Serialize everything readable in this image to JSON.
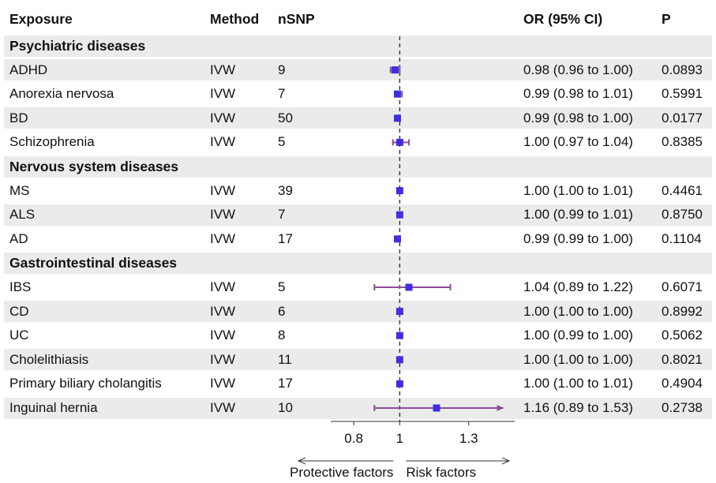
{
  "headers": {
    "exposure": "Exposure",
    "method": "Method",
    "nsnp": "nSNP",
    "or_ci": "OR (95% CI)",
    "p": "P"
  },
  "groups": [
    {
      "name": "Psychiatric diseases",
      "rows": [
        {
          "exposure": "ADHD",
          "method": "IVW",
          "nsnp": "9",
          "or_ci": "0.98 (0.96 to 1.00)",
          "p": "0.0893"
        },
        {
          "exposure": "Anorexia nervosa",
          "method": "IVW",
          "nsnp": "7",
          "or_ci": "0.99 (0.98 to 1.01)",
          "p": "0.5991"
        },
        {
          "exposure": "BD",
          "method": "IVW",
          "nsnp": "50",
          "or_ci": "0.99 (0.98 to 1.00)",
          "p": "0.0177"
        },
        {
          "exposure": "Schizophrenia",
          "method": "IVW",
          "nsnp": "5",
          "or_ci": "1.00 (0.97 to 1.04)",
          "p": "0.8385"
        }
      ]
    },
    {
      "name": "Nervous system diseases",
      "rows": [
        {
          "exposure": "MS",
          "method": "IVW",
          "nsnp": "39",
          "or_ci": "1.00 (1.00 to 1.01)",
          "p": "0.4461"
        },
        {
          "exposure": "ALS",
          "method": "IVW",
          "nsnp": "7",
          "or_ci": "1.00 (0.99 to 1.01)",
          "p": "0.8750"
        },
        {
          "exposure": "AD",
          "method": "IVW",
          "nsnp": "17",
          "or_ci": "0.99 (0.99 to 1.00)",
          "p": "0.1104"
        }
      ]
    },
    {
      "name": "Gastrointestinal diseases",
      "rows": [
        {
          "exposure": "IBS",
          "method": "IVW",
          "nsnp": "5",
          "or_ci": "1.04 (0.89 to 1.22)",
          "p": "0.6071"
        },
        {
          "exposure": "CD",
          "method": "IVW",
          "nsnp": "6",
          "or_ci": "1.00 (1.00 to 1.00)",
          "p": "0.8992"
        },
        {
          "exposure": "UC",
          "method": "IVW",
          "nsnp": "8",
          "or_ci": "1.00 (0.99 to 1.00)",
          "p": "0.5062"
        },
        {
          "exposure": "Cholelithiasis",
          "method": "IVW",
          "nsnp": "11",
          "or_ci": "1.00 (1.00 to 1.00)",
          "p": "0.8021"
        },
        {
          "exposure": "Primary biliary cholangitis",
          "method": "IVW",
          "nsnp": "17",
          "or_ci": "1.00 (1.00 to 1.01)",
          "p": "0.4904"
        },
        {
          "exposure": "Inguinal hernia",
          "method": "IVW",
          "nsnp": "10",
          "or_ci": "1.16 (0.89 to 1.53)",
          "p": "0.2738"
        }
      ]
    }
  ],
  "chart_data": {
    "type": "forest",
    "reference_line": 1,
    "xlim": [
      0.7,
      1.5
    ],
    "xticks": [
      0.8,
      1,
      1.3
    ],
    "xtick_labels": [
      "0.8",
      "1",
      "1.3"
    ],
    "direction_labels": {
      "left": "Protective factors",
      "right": "Risk factors"
    },
    "colors": {
      "point": "#3f2fe0",
      "ci_line": "#8a4f96",
      "reference": "#333333"
    },
    "series": [
      {
        "exposure": "ADHD",
        "or": 0.98,
        "lower": 0.96,
        "upper": 1.0
      },
      {
        "exposure": "Anorexia nervosa",
        "or": 0.99,
        "lower": 0.98,
        "upper": 1.01
      },
      {
        "exposure": "BD",
        "or": 0.99,
        "lower": 0.98,
        "upper": 1.0
      },
      {
        "exposure": "Schizophrenia",
        "or": 1.0,
        "lower": 0.97,
        "upper": 1.04
      },
      {
        "exposure": "MS",
        "or": 1.0,
        "lower": 1.0,
        "upper": 1.01
      },
      {
        "exposure": "ALS",
        "or": 1.0,
        "lower": 0.99,
        "upper": 1.01
      },
      {
        "exposure": "AD",
        "or": 0.99,
        "lower": 0.99,
        "upper": 1.0
      },
      {
        "exposure": "IBS",
        "or": 1.04,
        "lower": 0.89,
        "upper": 1.22
      },
      {
        "exposure": "CD",
        "or": 1.0,
        "lower": 1.0,
        "upper": 1.0
      },
      {
        "exposure": "UC",
        "or": 1.0,
        "lower": 0.99,
        "upper": 1.0
      },
      {
        "exposure": "Cholelithiasis",
        "or": 1.0,
        "lower": 1.0,
        "upper": 1.0
      },
      {
        "exposure": "Primary biliary cholangitis",
        "or": 1.0,
        "lower": 1.0,
        "upper": 1.01
      },
      {
        "exposure": "Inguinal hernia",
        "or": 1.16,
        "lower": 0.89,
        "upper": 1.53
      }
    ]
  }
}
